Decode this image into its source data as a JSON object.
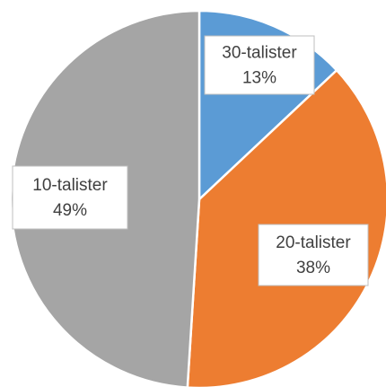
{
  "chart_data": {
    "type": "pie",
    "categories": [
      "30-talister",
      "20-talister",
      "10-talister"
    ],
    "values": [
      13,
      38,
      49
    ],
    "value_labels": [
      "13%",
      "38%",
      "49%"
    ],
    "colors": [
      "#5b9bd5",
      "#ed7d31",
      "#a5a5a5"
    ]
  }
}
